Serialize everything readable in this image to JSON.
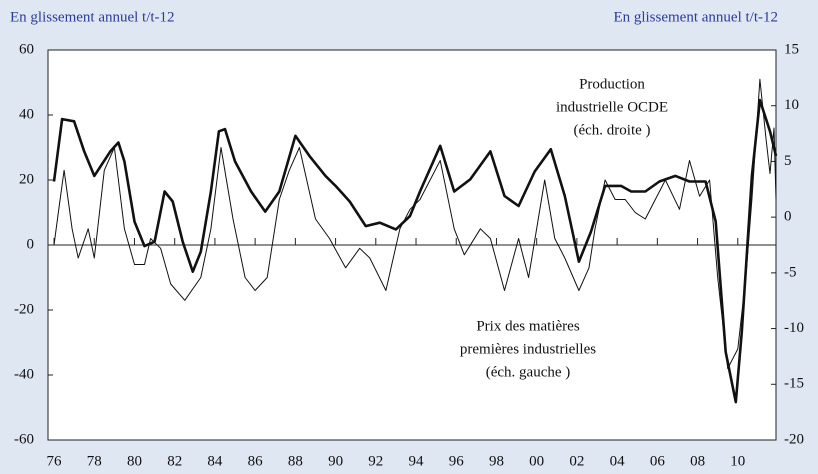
{
  "chart_data": {
    "type": "line",
    "y_label": "En glissement annuel t/t-12",
    "y2_label": "En glissement annuel t/t-12",
    "xlim": [
      1975.7,
      2011.9
    ],
    "xticks": [
      {
        "value": 1976,
        "label": "76"
      },
      {
        "value": 1978,
        "label": "78"
      },
      {
        "value": 1980,
        "label": "80"
      },
      {
        "value": 1982,
        "label": "82"
      },
      {
        "value": 1984,
        "label": "84"
      },
      {
        "value": 1986,
        "label": "86"
      },
      {
        "value": 1988,
        "label": "88"
      },
      {
        "value": 1990,
        "label": "90"
      },
      {
        "value": 1992,
        "label": "92"
      },
      {
        "value": 1994,
        "label": "94"
      },
      {
        "value": 1996,
        "label": "96"
      },
      {
        "value": 1998,
        "label": "98"
      },
      {
        "value": 2000,
        "label": "00"
      },
      {
        "value": 2002,
        "label": "02"
      },
      {
        "value": 2004,
        "label": "04"
      },
      {
        "value": 2006,
        "label": "06"
      },
      {
        "value": 2008,
        "label": "08"
      },
      {
        "value": 2010,
        "label": "10"
      }
    ],
    "ylim": [
      -60,
      60
    ],
    "yticks": [
      -60,
      -40,
      -20,
      0,
      20,
      40,
      60
    ],
    "y2lim": [
      -20,
      15
    ],
    "y2ticks": [
      -20,
      -15,
      -10,
      -5,
      0,
      5,
      10,
      15
    ],
    "series": [
      {
        "label": [
          "Prix des matières",
          "premières industrielles",
          "(éch. gauche )"
        ],
        "color": "#111111",
        "width": 1,
        "axis": "y",
        "x": [
          1976.0,
          1976.3,
          1976.5,
          1976.9,
          1977.2,
          1977.7,
          1978.0,
          1978.5,
          1979.0,
          1979.5,
          1980.0,
          1980.5,
          1980.8,
          1981.3,
          1981.8,
          1982.5,
          1983.3,
          1983.8,
          1984.3,
          1984.9,
          1985.5,
          1986.0,
          1986.6,
          1987.2,
          1987.7,
          1988.2,
          1989.0,
          1989.7,
          1990.5,
          1991.2,
          1991.7,
          1992.5,
          1993.2,
          1993.7,
          1994.2,
          1995.2,
          1995.9,
          1996.4,
          1997.2,
          1997.7,
          1998.4,
          1999.1,
          1999.6,
          2000.4,
          2000.9,
          2001.4,
          2002.1,
          2002.6,
          2002.9,
          2003.4,
          2003.9,
          2004.4,
          2004.9,
          2005.4,
          2005.9,
          2006.4,
          2007.1,
          2007.6,
          2008.1,
          2008.6,
          2009.0,
          2009.5,
          2010.0,
          2010.4,
          2010.7,
          2011.1,
          2011.4,
          2011.6,
          2011.8,
          2011.9
        ],
        "values": [
          0,
          14,
          23,
          5,
          -4,
          5,
          -4,
          23,
          30,
          5,
          -6,
          -6,
          2,
          -1,
          -12,
          -17,
          -10,
          5,
          30,
          8,
          -10,
          -14,
          -10,
          14,
          23,
          30,
          8,
          2,
          -7,
          -1,
          -4,
          -14,
          5,
          11,
          14,
          26,
          5,
          -3,
          5,
          2,
          -14,
          2,
          -10,
          20,
          2,
          -4,
          -14,
          -7,
          5,
          20,
          14,
          14,
          10,
          8,
          14,
          20,
          11,
          26,
          15,
          20,
          -10,
          -38,
          -32,
          -10,
          14,
          51,
          33,
          22,
          36,
          14
        ]
      },
      {
        "label": [
          "Production",
          "industrielle OCDE",
          "(éch. droite )"
        ],
        "color": "#111111",
        "width": 2.6,
        "axis": "y2",
        "x": [
          1976.0,
          1976.4,
          1977.0,
          1977.5,
          1978.0,
          1978.8,
          1979.2,
          1979.5,
          1980.0,
          1980.5,
          1981.0,
          1981.5,
          1981.9,
          1982.4,
          1982.9,
          1983.3,
          1983.8,
          1984.2,
          1984.5,
          1985.0,
          1985.8,
          1986.5,
          1987.2,
          1988.0,
          1988.7,
          1989.5,
          1990.0,
          1990.7,
          1991.5,
          1992.2,
          1993.0,
          1993.7,
          1994.2,
          1995.2,
          1995.9,
          1996.7,
          1997.7,
          1998.4,
          1999.1,
          1999.9,
          2000.7,
          2001.4,
          2002.1,
          2002.7,
          2003.4,
          2004.2,
          2004.7,
          2005.4,
          2006.1,
          2006.9,
          2007.6,
          2008.4,
          2008.9,
          2009.4,
          2009.9,
          2010.2,
          2010.7,
          2011.1,
          2011.6,
          2011.9
        ],
        "values": [
          3.2,
          8.8,
          8.6,
          5.9,
          3.7,
          5.9,
          6.7,
          5.0,
          -0.4,
          -2.6,
          -2.2,
          2.3,
          1.4,
          -2.2,
          -4.9,
          -3.1,
          2.3,
          7.7,
          7.9,
          5.0,
          2.3,
          0.5,
          2.3,
          7.3,
          5.5,
          3.7,
          2.8,
          1.4,
          -0.8,
          -0.5,
          -1.1,
          0.1,
          2.3,
          6.4,
          2.3,
          3.4,
          5.9,
          1.9,
          1.0,
          4.1,
          6.1,
          1.9,
          -4.0,
          -1.3,
          2.8,
          2.8,
          2.3,
          2.3,
          3.2,
          3.7,
          3.2,
          3.2,
          -0.4,
          -12.1,
          -16.6,
          -10.3,
          3.7,
          10.5,
          7.7,
          5.5
        ]
      }
    ]
  }
}
